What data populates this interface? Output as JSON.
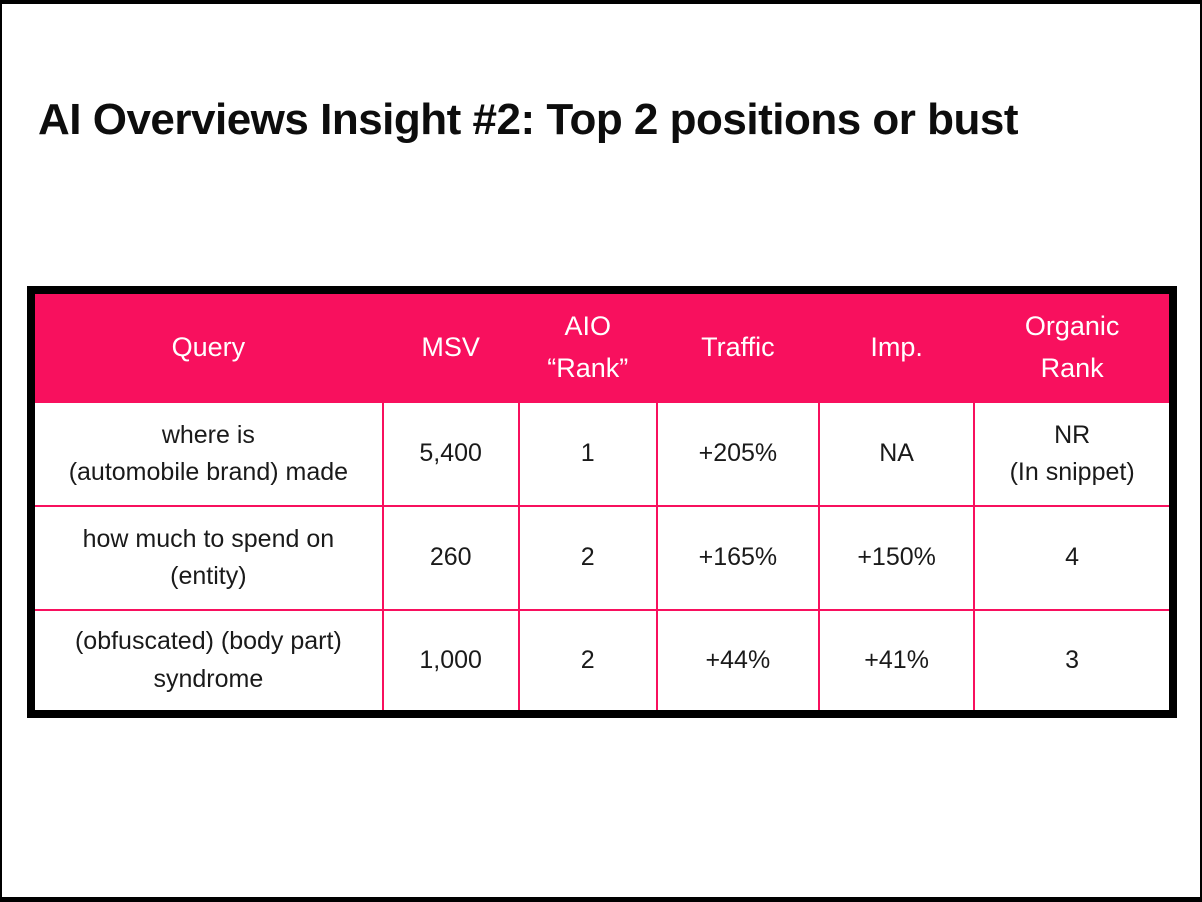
{
  "title": "AI Overviews Insight #2: Top 2 positions or bust",
  "colors": {
    "accent_pink": "#f8105e",
    "frame_black": "#000000",
    "header_text": "#ffffff",
    "body_text": "#1a1a1a",
    "background": "#ffffff"
  },
  "table": {
    "columns": [
      "Query",
      "MSV",
      "AIO\n“Rank”",
      "Traffic",
      "Imp.",
      "Organic\nRank"
    ],
    "rows": [
      [
        "where is\n(automobile brand) made",
        "5,400",
        "1",
        "+205%",
        "NA",
        "NR\n(In snippet)"
      ],
      [
        "how much to spend on\n(entity)",
        "260",
        "2",
        "+165%",
        "+150%",
        "4"
      ],
      [
        "(obfuscated) (body part)\nsyndrome",
        "1,000",
        "2",
        "+44%",
        "+41%",
        "3"
      ]
    ]
  },
  "chart_data": {
    "type": "table",
    "title": "AI Overviews Insight #2: Top 2 positions or bust",
    "columns": [
      "Query",
      "MSV",
      "AIO “Rank”",
      "Traffic",
      "Imp.",
      "Organic Rank"
    ],
    "rows": [
      [
        "where is (automobile brand) made",
        "5,400",
        "1",
        "+205%",
        "NA",
        "NR (In snippet)"
      ],
      [
        "how much to spend on (entity)",
        "260",
        "2",
        "+165%",
        "+150%",
        "4"
      ],
      [
        "(obfuscated) (body part) syndrome",
        "1,000",
        "2",
        "+44%",
        "+41%",
        "3"
      ]
    ],
    "layout_hints": {
      "header_background": "#f8105e",
      "header_text_color": "#ffffff",
      "cell_border_color": "#f8105e",
      "outer_border": "8px solid black"
    }
  }
}
